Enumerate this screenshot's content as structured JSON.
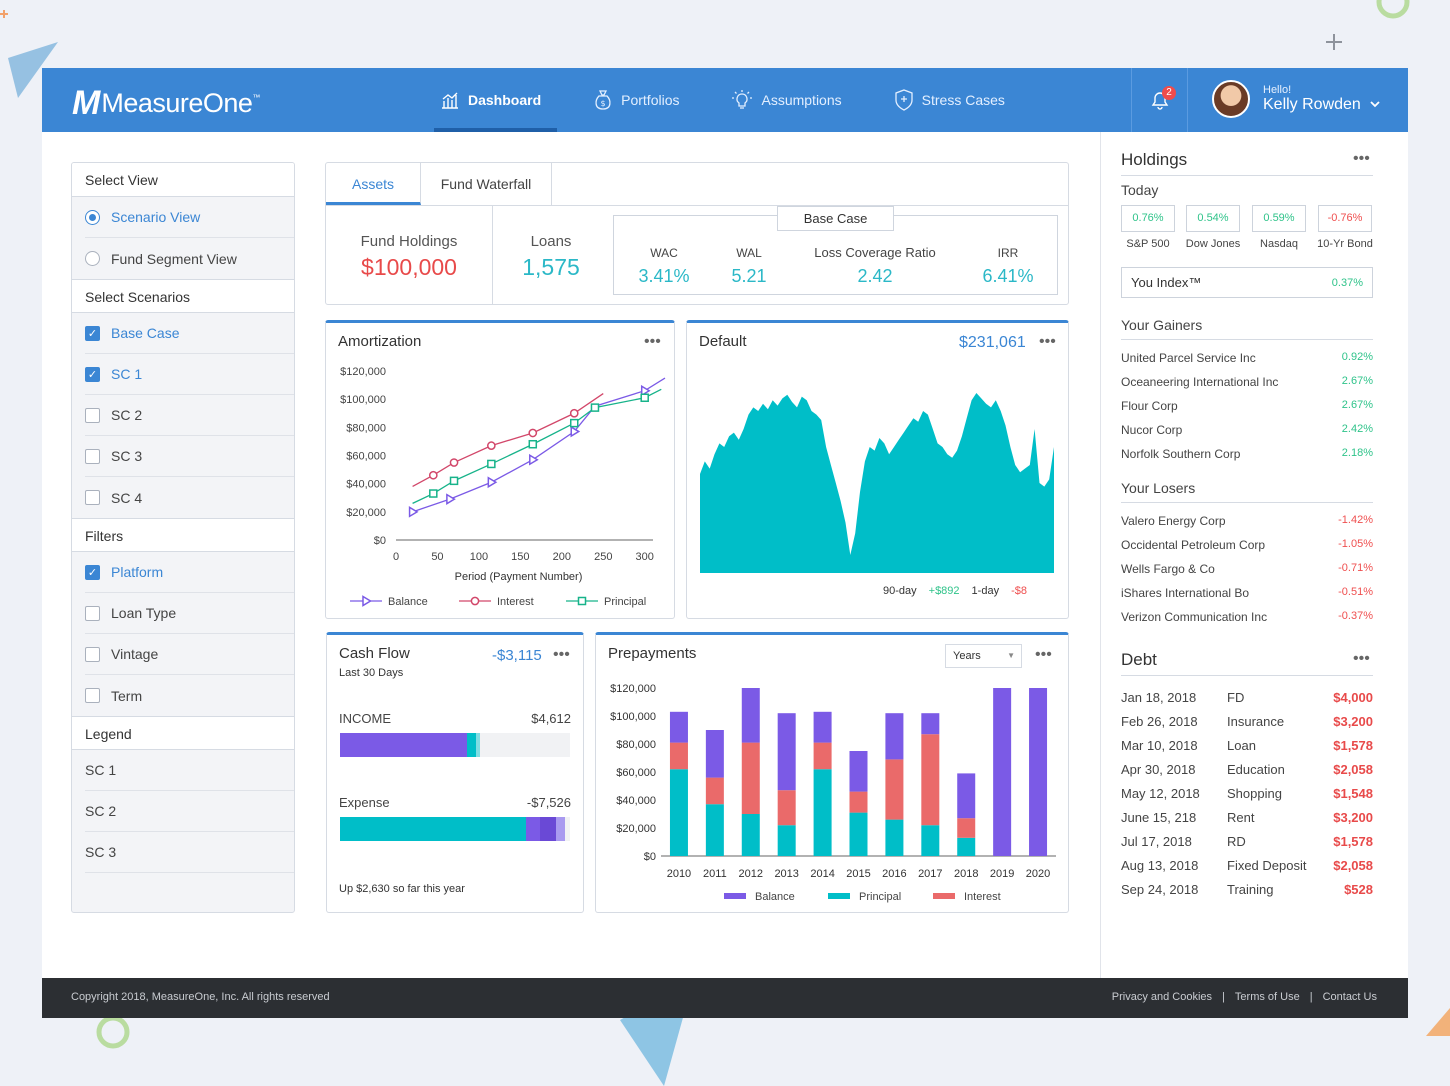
{
  "app": {
    "brand_mark": "M",
    "brand": "MeasureOne",
    "brand_tm": "™"
  },
  "nav": [
    {
      "label": "Dashboard",
      "icon": "chart-icon",
      "active": true
    },
    {
      "label": "Portfolios",
      "icon": "money-bag-icon"
    },
    {
      "label": "Assumptions",
      "icon": "lightbulb-icon"
    },
    {
      "label": "Stress Cases",
      "icon": "shield-icon"
    }
  ],
  "notifications": {
    "count": "2"
  },
  "user": {
    "greeting": "Hello!",
    "name": "Kelly Rowden"
  },
  "sidebar": {
    "select_view": "Select View",
    "views": [
      {
        "label": "Scenario View",
        "selected": true
      },
      {
        "label": "Fund Segment View",
        "selected": false
      }
    ],
    "select_scenarios": "Select Scenarios",
    "scenarios": [
      {
        "label": "Base Case",
        "checked": true
      },
      {
        "label": "SC 1",
        "checked": true
      },
      {
        "label": "SC 2",
        "checked": false
      },
      {
        "label": "SC 3",
        "checked": false
      },
      {
        "label": "SC 4",
        "checked": false
      }
    ],
    "filters": "Filters",
    "filter_items": [
      {
        "label": "Platform",
        "checked": true
      },
      {
        "label": "Loan Type",
        "checked": false
      },
      {
        "label": "Vintage",
        "checked": false
      },
      {
        "label": "Term",
        "checked": false
      }
    ],
    "legend": "Legend",
    "legend_items": [
      "SC 1",
      "SC 2",
      "SC 3"
    ]
  },
  "summary": {
    "tabs": [
      "Assets",
      "Fund Waterfall"
    ],
    "fund_holdings_label": "Fund Holdings",
    "fund_holdings": "$100,000",
    "loans_label": "Loans",
    "loans": "1,575",
    "base_case": "Base Case",
    "wac_label": "WAC",
    "wac": "3.41%",
    "wal_label": "WAL",
    "wal": "5.21",
    "lcr_label": "Loss Coverage Ratio",
    "lcr": "2.42",
    "irr_label": "IRR",
    "irr": "6.41%"
  },
  "amortization": {
    "title": "Amortization",
    "legend": [
      "Balance",
      "Interest",
      "Principal"
    ]
  },
  "default_panel": {
    "title": "Default",
    "total": "$231,061",
    "label_90": "90-day",
    "value_90": "+$892",
    "label_1": "1-day",
    "value_1": "-$8"
  },
  "cashflow": {
    "title": "Cash Flow",
    "subtitle": "Last 30 Days",
    "total": "-$3,115",
    "income_label": "INCOME",
    "income": "$4,612",
    "expense_label": "Expense",
    "expense": "-$7,526",
    "footer": "Up $2,630 so far this year",
    "income_fill": [
      0.55,
      0.04,
      0.02
    ],
    "expense_fill": [
      0.81,
      0.06,
      0.07,
      0.04
    ]
  },
  "prepayments": {
    "title": "Prepayments",
    "dropdown": "Years",
    "legend": [
      "Balance",
      "Principal",
      "Interest"
    ]
  },
  "holdings": {
    "title": "Holdings",
    "today": "Today",
    "indices": [
      {
        "value": "0.76%",
        "label": "S&P 500",
        "up": true
      },
      {
        "value": "0.54%",
        "label": "Dow Jones",
        "up": true
      },
      {
        "value": "0.59%",
        "label": "Nasdaq",
        "up": true
      },
      {
        "value": "-0.76%",
        "label": "10-Yr Bond",
        "up": false
      }
    ],
    "you_index_label": "You Index™",
    "you_index": "0.37%",
    "gainers_title": "Your Gainers",
    "gainers": [
      {
        "name": "United Parcel Service Inc",
        "value": "0.92%"
      },
      {
        "name": "Oceaneering International Inc",
        "value": "2.67%"
      },
      {
        "name": "Flour Corp",
        "value": "2.67%"
      },
      {
        "name": "Nucor Corp",
        "value": "2.42%"
      },
      {
        "name": "Norfolk Southern Corp",
        "value": "2.18%"
      }
    ],
    "losers_title": "Your Losers",
    "losers": [
      {
        "name": "Valero Energy Corp",
        "value": "-1.42%"
      },
      {
        "name": "Occidental Petroleum Corp",
        "value": "-1.05%"
      },
      {
        "name": "Wells Fargo & Co",
        "value": "-0.71%"
      },
      {
        "name": "iShares International Bo",
        "value": "-0.51%"
      },
      {
        "name": "Verizon Communication Inc",
        "value": "-0.37%"
      }
    ]
  },
  "debt": {
    "title": "Debt",
    "rows": [
      {
        "date": "Jan 18, 2018",
        "type": "FD",
        "amount": "$4,000"
      },
      {
        "date": "Feb 26, 2018",
        "type": "Insurance",
        "amount": "$3,200"
      },
      {
        "date": "Mar 10, 2018",
        "type": "Loan",
        "amount": "$1,578"
      },
      {
        "date": "Apr 30, 2018",
        "type": "Education",
        "amount": "$2,058"
      },
      {
        "date": "May 12, 2018",
        "type": "Shopping",
        "amount": "$1,548"
      },
      {
        "date": "June 15, 218",
        "type": "Rent",
        "amount": "$3,200"
      },
      {
        "date": "Jul 17, 2018",
        "type": "RD",
        "amount": "$1,578"
      },
      {
        "date": "Aug 13, 2018",
        "type": "Fixed Deposit",
        "amount": "$2,058"
      },
      {
        "date": "Sep 24, 2018",
        "type": "Training",
        "amount": "$528"
      }
    ]
  },
  "footer": {
    "copyright": "Copyright 2018, MeasureOne, Inc. All rights reserved",
    "links": [
      "Privacy and Cookies",
      "Terms of Use",
      "Contact Us"
    ],
    "separator": "|"
  },
  "colors": {
    "primary": "#3b86d4",
    "teal": "#00bec8",
    "purple": "#7b5ae6",
    "red": "#ea6a6a",
    "green": "#2fc38a",
    "loss": "#ef4f4f"
  },
  "chart_data": [
    {
      "type": "line",
      "title": "Amortization",
      "xlabel": "Period (Payment Number)",
      "ylabel": "",
      "x_ticks": [
        0,
        50,
        100,
        150,
        200,
        250,
        300
      ],
      "y_ticks": [
        "$0",
        "$20,000",
        "$40,000",
        "$60,000",
        "$80,000",
        "$100,000",
        "$120,000"
      ],
      "xlim": [
        0,
        310
      ],
      "ylim": [
        0,
        120000
      ],
      "series": [
        {
          "name": "Balance",
          "color": "#7b5ae6",
          "marker": "triangle",
          "x": [
            20,
            65,
            115,
            165,
            215,
            240,
            300,
            330
          ],
          "y": [
            20000,
            29000,
            41000,
            57000,
            77000,
            95000,
            106000,
            115000
          ],
          "marked": [
            true,
            true,
            true,
            true,
            true,
            false,
            true,
            false
          ]
        },
        {
          "name": "Interest",
          "color": "#d2476a",
          "marker": "circle",
          "x": [
            20,
            45,
            70,
            115,
            165,
            215,
            250
          ],
          "y": [
            38000,
            46000,
            55000,
            67000,
            76000,
            90000,
            104000
          ],
          "marked": [
            false,
            true,
            true,
            true,
            true,
            true,
            false
          ]
        },
        {
          "name": "Principal",
          "color": "#17b38a",
          "marker": "square",
          "x": [
            20,
            45,
            70,
            115,
            165,
            215,
            240,
            300,
            320
          ],
          "y": [
            26000,
            33000,
            42000,
            54000,
            68000,
            83000,
            94000,
            101000,
            107000
          ],
          "marked": [
            false,
            true,
            true,
            true,
            true,
            true,
            true,
            true,
            false
          ]
        }
      ]
    },
    {
      "type": "area",
      "title": "Default",
      "color": "#00bec8",
      "values": [
        55,
        62,
        58,
        66,
        72,
        70,
        76,
        78,
        74,
        80,
        88,
        92,
        90,
        94,
        91,
        96,
        93,
        97,
        99,
        95,
        92,
        98,
        96,
        90,
        88,
        85,
        70,
        60,
        50,
        40,
        28,
        10,
        22,
        45,
        62,
        70,
        68,
        75,
        72,
        66,
        70,
        74,
        78,
        82,
        86,
        84,
        90,
        88,
        80,
        72,
        70,
        66,
        64,
        68,
        76,
        86,
        96,
        100,
        97,
        94,
        92,
        96,
        90,
        82,
        70,
        60,
        56,
        58,
        60,
        80,
        50,
        48,
        52,
        70
      ],
      "ylim": [
        0,
        110
      ]
    },
    {
      "type": "bar",
      "title": "Prepayments",
      "stacked": true,
      "categories": [
        "2010",
        "2011",
        "2012",
        "2013",
        "2014",
        "2015",
        "2016",
        "2017",
        "2018",
        "2019",
        "2020"
      ],
      "y_ticks": [
        "$0",
        "$20,000",
        "$40,000",
        "$60,000",
        "$80,000",
        "$100,000",
        "$120,000"
      ],
      "ylim": [
        0,
        120000
      ],
      "series": [
        {
          "name": "Principal",
          "color": "#00bec8",
          "values": [
            62000,
            37000,
            30000,
            22000,
            62000,
            31000,
            26000,
            22000,
            13000,
            0,
            0
          ]
        },
        {
          "name": "Interest",
          "color": "#ea6a6a",
          "values": [
            19000,
            19000,
            51000,
            25000,
            19000,
            15000,
            43000,
            65000,
            14000,
            0,
            0
          ]
        },
        {
          "name": "Balance",
          "color": "#7b5ae6",
          "values": [
            22000,
            34000,
            39000,
            55000,
            22000,
            29000,
            33000,
            15000,
            32000,
            120000,
            120000
          ]
        }
      ]
    }
  ]
}
